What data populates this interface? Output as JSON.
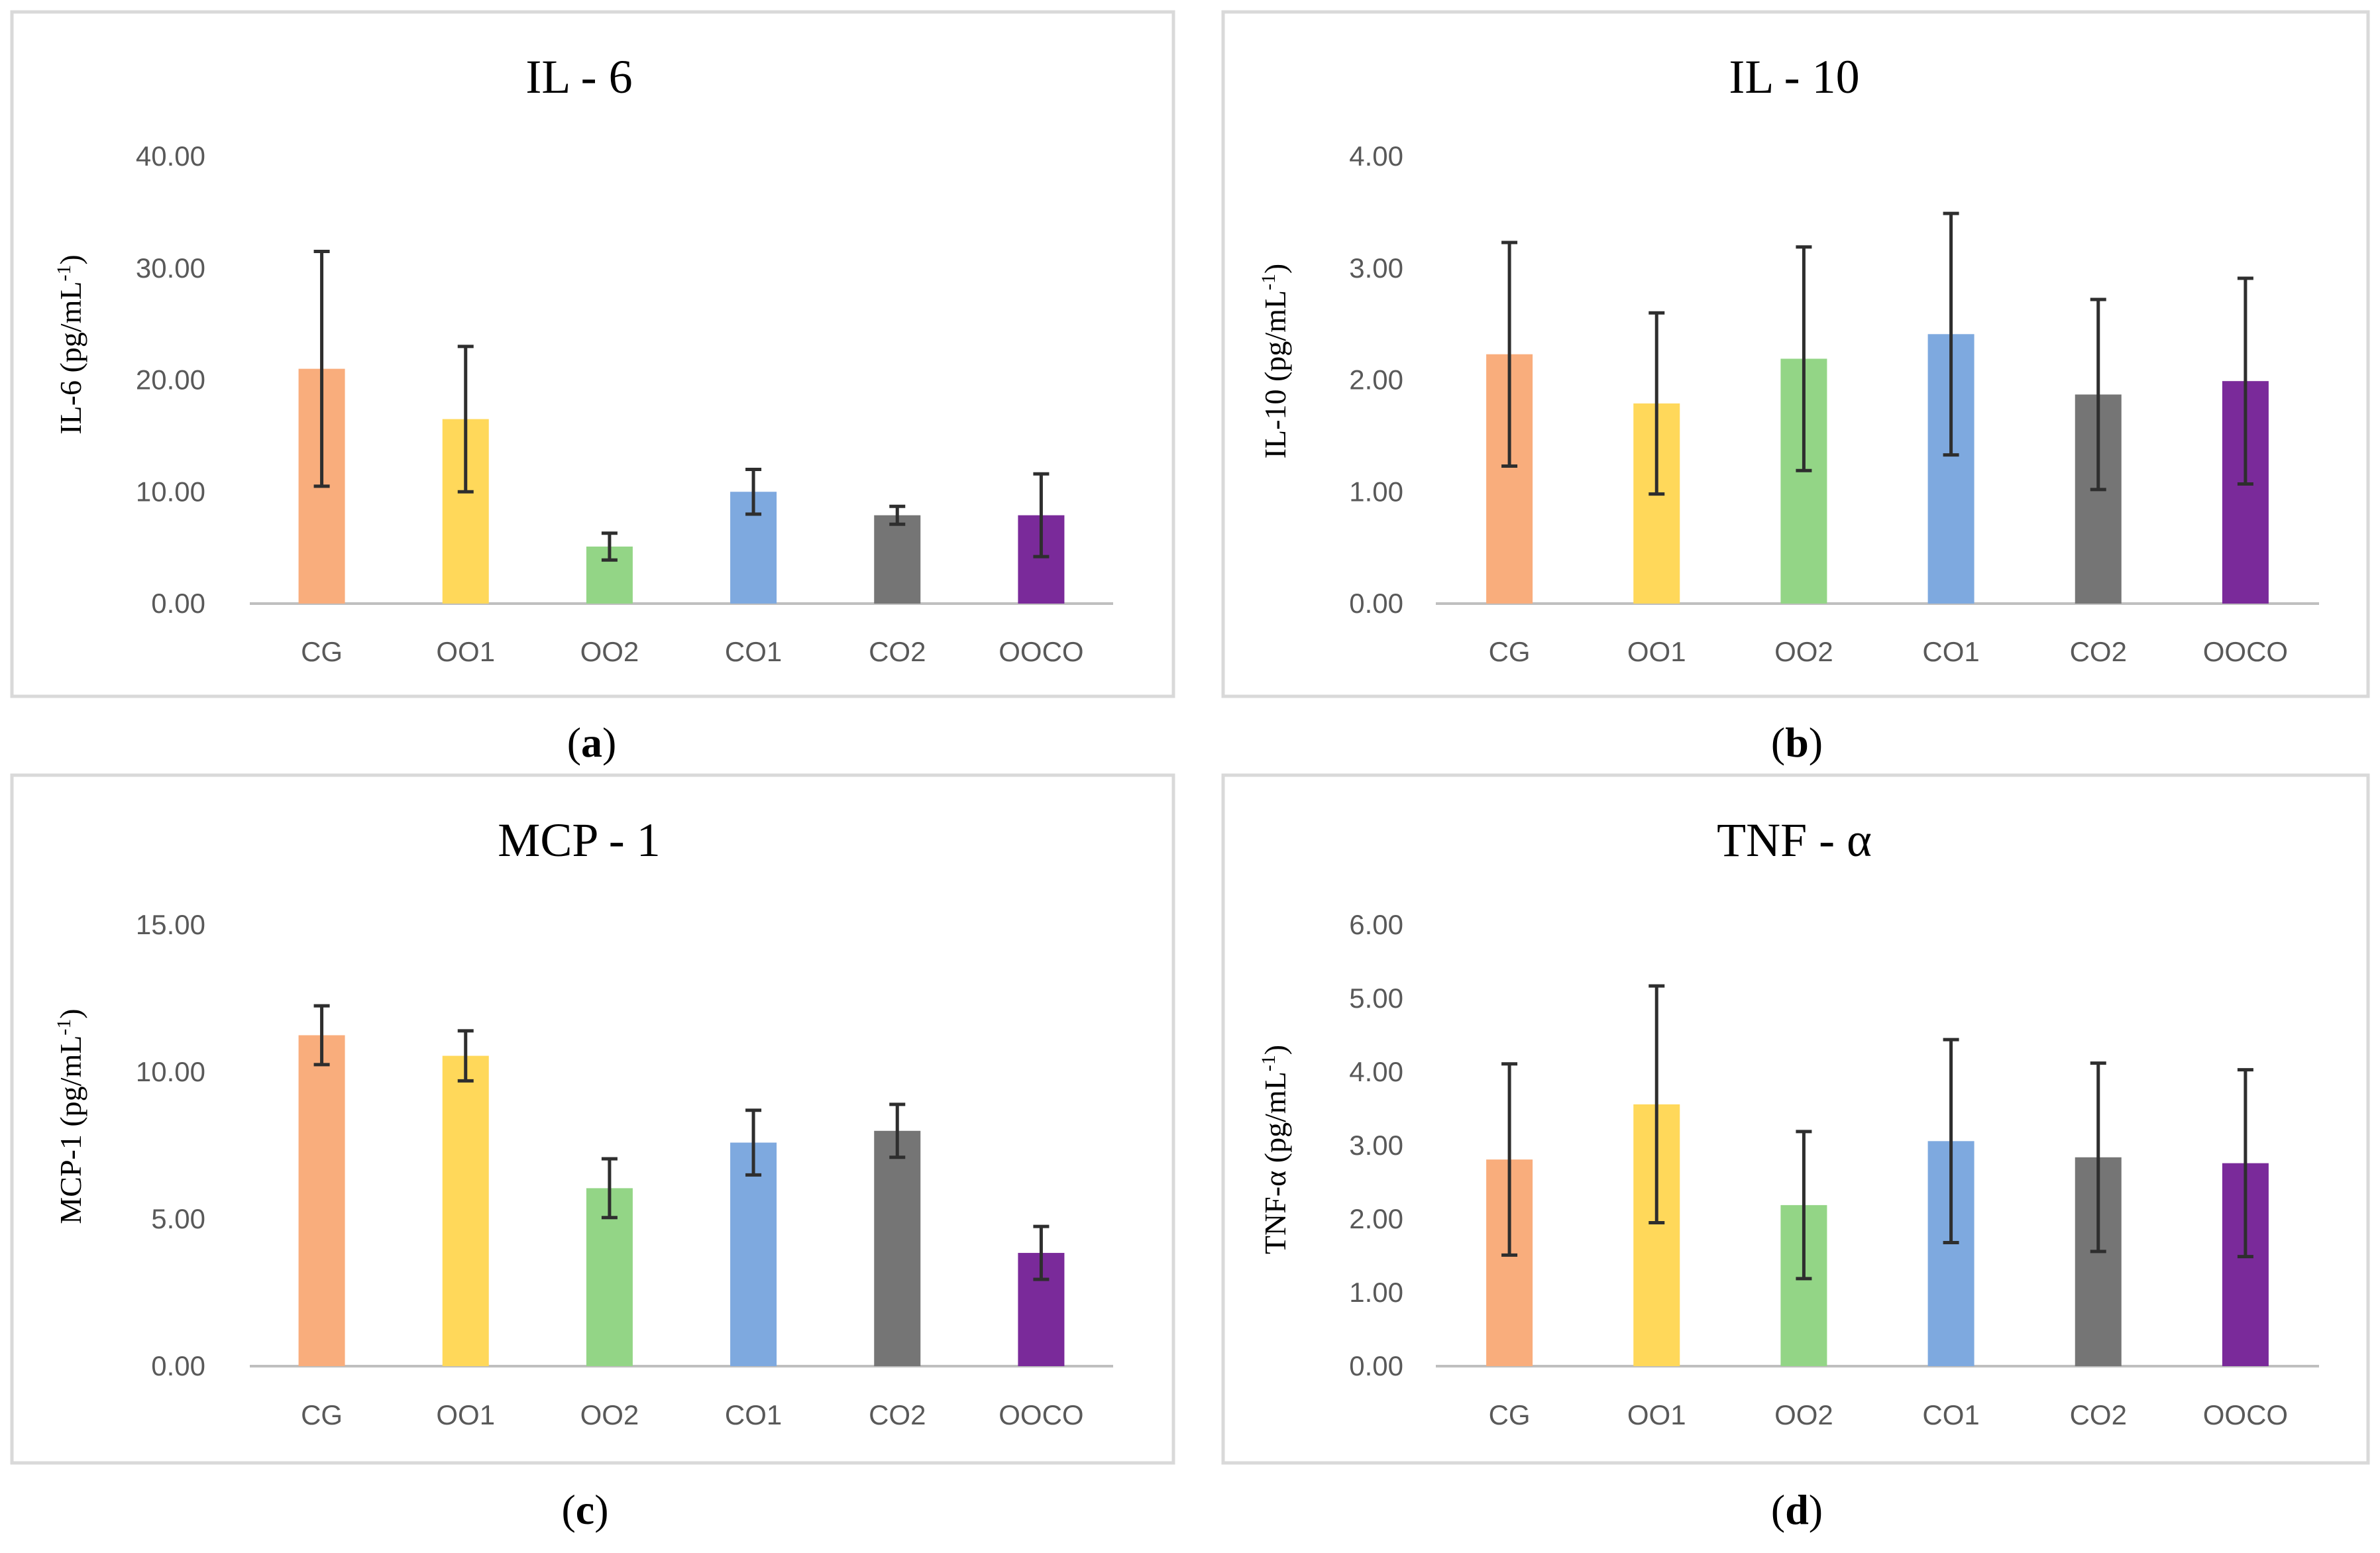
{
  "figure_labels": [
    "(a)",
    "(b)",
    "(c)",
    "(d)"
  ],
  "colors": {
    "CG": "#F9AD7C",
    "OO1": "#FFD85A",
    "OO2": "#93D586",
    "CO1": "#7EA9DF",
    "CO2": "#757575",
    "OOCO": "#7A2A9A",
    "error_bar": "#2E2E2E",
    "axis": "#BFBFBF",
    "panel_border": "#D9D9D9"
  },
  "chart_data": [
    {
      "type": "bar",
      "panel": "(a)",
      "title": "IL - 6",
      "ylabel": "IL-6 (pg/mL",
      "ylabel_sup": "-1",
      "ylabel_close": ")",
      "categories": [
        "CG",
        "OO1",
        "OO2",
        "CO1",
        "CO2",
        "OOCO"
      ],
      "values": [
        21.0,
        16.5,
        5.1,
        10.0,
        7.9,
        7.9
      ],
      "errors": [
        10.5,
        6.5,
        1.2,
        2.0,
        0.8,
        3.7
      ],
      "ylim": [
        0,
        40
      ],
      "yticks": [
        "0.00",
        "10.00",
        "20.00",
        "30.00",
        "40.00"
      ],
      "legend": "none",
      "grid": false
    },
    {
      "type": "bar",
      "panel": "(b)",
      "title": "IL - 10",
      "ylabel": "IL-10 (pg/mL",
      "ylabel_sup": "-1",
      "ylabel_close": ")",
      "categories": [
        "CG",
        "OO1",
        "OO2",
        "CO1",
        "CO2",
        "OOCO"
      ],
      "values": [
        2.23,
        1.79,
        2.19,
        2.41,
        1.87,
        1.99
      ],
      "errors": [
        1.0,
        0.81,
        1.0,
        1.08,
        0.85,
        0.92
      ],
      "ylim": [
        0,
        4
      ],
      "yticks": [
        "0.00",
        "1.00",
        "2.00",
        "3.00",
        "4.00"
      ],
      "legend": "none",
      "grid": false
    },
    {
      "type": "bar",
      "panel": "(c)",
      "title": "MCP - 1",
      "ylabel": "MCP-1 (pg/mL",
      "ylabel_sup": "-1",
      "ylabel_close": ")",
      "categories": [
        "CG",
        "OO1",
        "OO2",
        "CO1",
        "CO2",
        "OOCO"
      ],
      "values": [
        11.25,
        10.55,
        6.05,
        7.6,
        8.0,
        3.85
      ],
      "errors": [
        1.0,
        0.85,
        1.0,
        1.1,
        0.9,
        0.9
      ],
      "ylim": [
        0,
        15
      ],
      "yticks": [
        "0.00",
        "5.00",
        "10.00",
        "15.00"
      ],
      "legend": "none",
      "grid": false
    },
    {
      "type": "bar",
      "panel": "(d)",
      "title": "TNF - α",
      "ylabel": "TNF-α (pg/mL",
      "ylabel_sup": "-1",
      "ylabel_close": ")",
      "categories": [
        "CG",
        "OO1",
        "OO2",
        "CO1",
        "CO2",
        "OOCO"
      ],
      "values": [
        2.81,
        3.56,
        2.19,
        3.06,
        2.84,
        2.76
      ],
      "errors": [
        1.3,
        1.61,
        1.0,
        1.38,
        1.28,
        1.27
      ],
      "ylim": [
        0,
        6
      ],
      "yticks": [
        "0.00",
        "1.00",
        "2.00",
        "3.00",
        "4.00",
        "5.00",
        "6.00"
      ],
      "legend": "none",
      "grid": false
    }
  ]
}
